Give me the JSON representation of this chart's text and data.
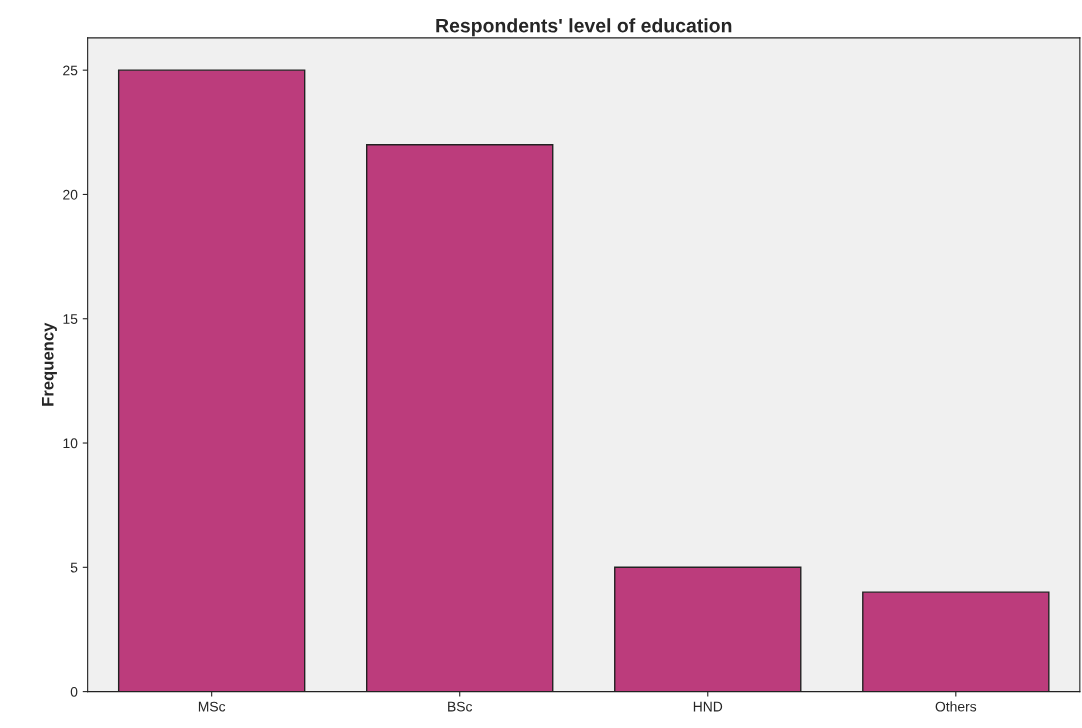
{
  "chart_data": {
    "type": "bar",
    "title": "Respondents' level of education",
    "ylabel": "Frequency",
    "categories": [
      "MSc",
      "BSc",
      "HND",
      "Others"
    ],
    "values": [
      25,
      22,
      5,
      4
    ],
    "color": "#bc3c7c",
    "ylim": [
      0,
      26.3
    ],
    "yticks": [
      0,
      5,
      10,
      15,
      20,
      25
    ],
    "grid": false,
    "legend": false
  }
}
